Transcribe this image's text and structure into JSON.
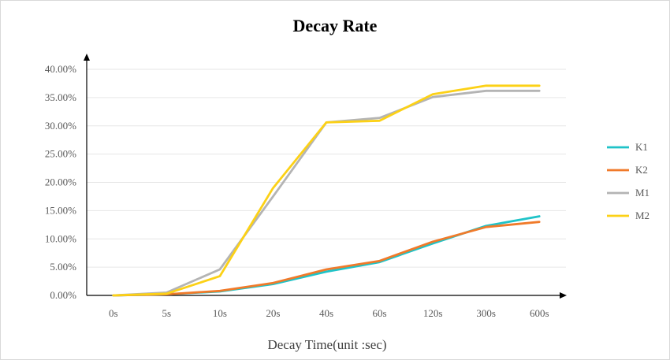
{
  "chart_data": {
    "type": "line",
    "title": "Decay Rate",
    "xlabel": "Decay Time(unit :sec)",
    "ylabel": "",
    "categories": [
      "0s",
      "5s",
      "10s",
      "20s",
      "40s",
      "60s",
      "120s",
      "300s",
      "600s"
    ],
    "yticks": [
      "0.00%",
      "5.00%",
      "10.00%",
      "15.00%",
      "20.00%",
      "25.00%",
      "30.00%",
      "35.00%",
      "40.00%"
    ],
    "ylim": [
      0,
      40
    ],
    "grid": true,
    "legend_position": "right",
    "series": [
      {
        "name": "K1",
        "color": "#1fc3c8",
        "values": [
          0,
          0.2,
          0.7,
          2.0,
          4.2,
          5.9,
          9.2,
          12.3,
          14.0
        ]
      },
      {
        "name": "K2",
        "color": "#f07a2a",
        "values": [
          0,
          0.2,
          0.8,
          2.2,
          4.6,
          6.1,
          9.5,
          12.1,
          13.0
        ]
      },
      {
        "name": "M1",
        "color": "#b4b4b4",
        "values": [
          0,
          0.5,
          4.6,
          17.5,
          30.6,
          31.4,
          35.1,
          36.2,
          36.2
        ]
      },
      {
        "name": "M2",
        "color": "#fcd116",
        "values": [
          0,
          0.3,
          3.4,
          19.0,
          30.6,
          30.9,
          35.6,
          37.1,
          37.1
        ]
      }
    ]
  }
}
